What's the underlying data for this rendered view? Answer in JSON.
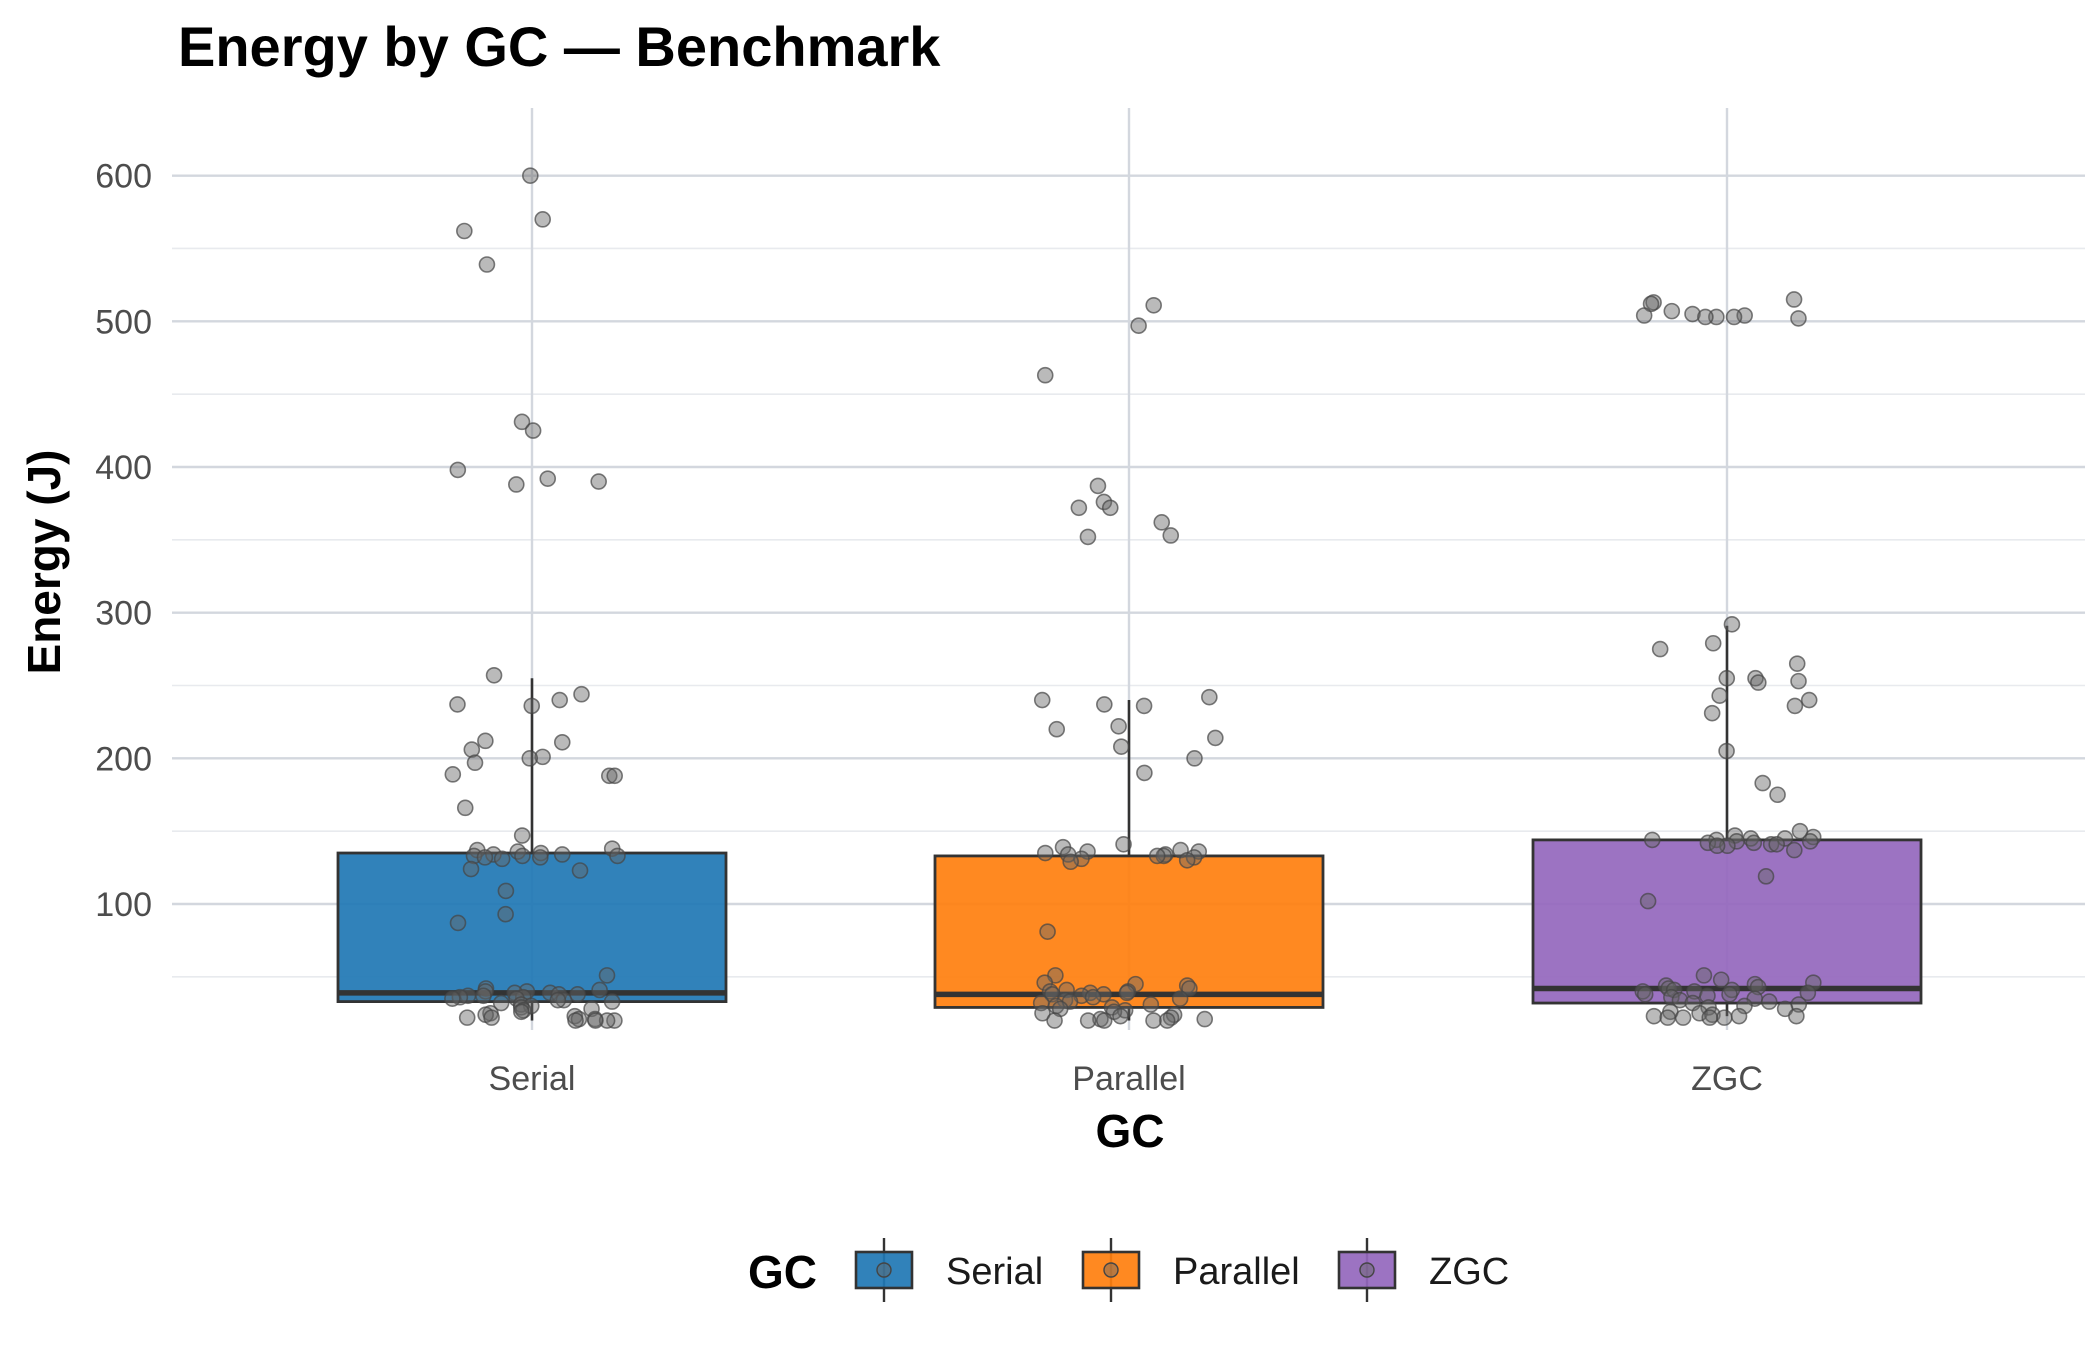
{
  "chart_data": {
    "type": "box",
    "title": "Energy by GC — Benchmark",
    "xlabel": "GC",
    "ylabel": "Energy (J)",
    "ylim": [
      10,
      645
    ],
    "yticks": [
      100,
      200,
      300,
      400,
      500,
      600
    ],
    "grid": true,
    "legend": {
      "title": "GC",
      "placement": "bottom"
    },
    "categories": [
      "Serial",
      "Parallel",
      "ZGC"
    ],
    "colors": {
      "Serial": "#1f77b4",
      "Parallel": "#ff7f0e",
      "ZGC": "#9467bd"
    },
    "boxes": [
      {
        "name": "Serial",
        "q1": 33,
        "median": 39,
        "q3": 135,
        "whisker_low": 20,
        "whisker_high": 255
      },
      {
        "name": "Parallel",
        "q1": 29,
        "median": 38,
        "q3": 133,
        "whisker_low": 20,
        "whisker_high": 240
      },
      {
        "name": "ZGC",
        "q1": 32,
        "median": 42,
        "q3": 144,
        "whisker_low": 23,
        "whisker_high": 291
      }
    ],
    "points": {
      "Serial": [
        600,
        570,
        562,
        539,
        431,
        425,
        398,
        390,
        392,
        388,
        257,
        244,
        240,
        237,
        236,
        212,
        211,
        206,
        201,
        200,
        197,
        189,
        188,
        188,
        166,
        147,
        138,
        137,
        136,
        135,
        134,
        134,
        133,
        133,
        133,
        132,
        132,
        131,
        124,
        123,
        109,
        93,
        87,
        51,
        42,
        41,
        40,
        40,
        39,
        39,
        38,
        38,
        37,
        37,
        36,
        36,
        35,
        35,
        34,
        34,
        33,
        32,
        31,
        30,
        29,
        28,
        27,
        26,
        25,
        24,
        23,
        22,
        22,
        21,
        21,
        20,
        20,
        20,
        20
      ],
      "Parallel": [
        511,
        497,
        463,
        387,
        376,
        372,
        372,
        362,
        353,
        352,
        242,
        240,
        237,
        236,
        222,
        220,
        214,
        208,
        200,
        190,
        141,
        139,
        137,
        136,
        136,
        135,
        134,
        134,
        133,
        133,
        132,
        131,
        130,
        129,
        81,
        51,
        46,
        45,
        44,
        42,
        41,
        40,
        40,
        39,
        39,
        38,
        38,
        37,
        36,
        35,
        34,
        33,
        32,
        31,
        30,
        29,
        28,
        27,
        26,
        25,
        24,
        23,
        22,
        21,
        21,
        20,
        20,
        20,
        20,
        20
      ],
      "ZGC": [
        515,
        513,
        512,
        507,
        505,
        504,
        504,
        503,
        503,
        503,
        502,
        292,
        279,
        275,
        265,
        255,
        255,
        253,
        252,
        243,
        240,
        236,
        231,
        205,
        183,
        175,
        150,
        147,
        146,
        145,
        145,
        144,
        144,
        143,
        143,
        142,
        142,
        141,
        141,
        140,
        140,
        137,
        119,
        102,
        51,
        48,
        46,
        45,
        44,
        43,
        42,
        41,
        41,
        40,
        40,
        39,
        38,
        38,
        37,
        36,
        35,
        34,
        33,
        32,
        31,
        30,
        29,
        28,
        26,
        25,
        24,
        23,
        23,
        23,
        22,
        22,
        22,
        22
      ]
    }
  }
}
